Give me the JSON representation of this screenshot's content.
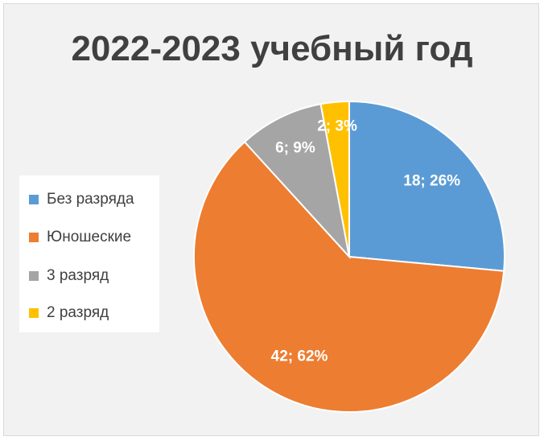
{
  "chart_data": {
    "type": "pie",
    "title": "2022-2023 учебный год",
    "categories": [
      "Без разряда",
      "Юношеские",
      "3 разряд",
      "2 разряд"
    ],
    "values": [
      18,
      42,
      6,
      2
    ],
    "percent_labels": [
      "18; 26%",
      "42; 62%",
      "6; 9%",
      "2; 3%"
    ],
    "colors": [
      "#5b9bd5",
      "#ed7d31",
      "#a5a5a5",
      "#ffc000"
    ],
    "start_angle_deg": 0,
    "direction": "clockwise",
    "legend_position": "left"
  }
}
